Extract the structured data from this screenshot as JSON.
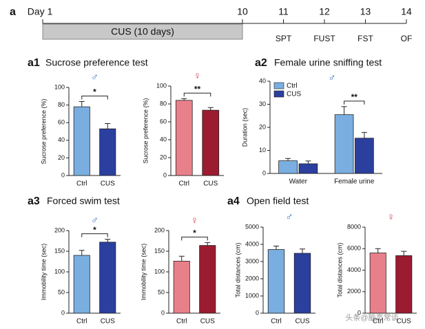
{
  "timeline": {
    "label": "a",
    "start_label": "Day 1",
    "period": "CUS (10 days)",
    "days": [
      10,
      11,
      12,
      13,
      14
    ],
    "tests": [
      "SPT",
      "FUST",
      "FST",
      "OF"
    ]
  },
  "panels": [
    {
      "label": "a1",
      "title": "Sucrose preference test"
    },
    {
      "label": "a2",
      "title": "Female urine sniffing test"
    },
    {
      "label": "a3",
      "title": "Forced swim test"
    },
    {
      "label": "a4",
      "title": "Open field test"
    }
  ],
  "chart_data": [
    {
      "type": "bar",
      "symbol": "♂",
      "symbol_color": "#3b6fc9",
      "ylabel": "Sucrose preference (%)",
      "categories": [
        "Ctrl",
        "CUS"
      ],
      "values": [
        78,
        53
      ],
      "errors": [
        6,
        6
      ],
      "colors": [
        "#7aaee0",
        "#2b3f9e"
      ],
      "ylim": [
        0,
        100
      ],
      "yticks": [
        0,
        20,
        40,
        60,
        80,
        100
      ],
      "annotation": "*"
    },
    {
      "type": "bar",
      "symbol": "♀",
      "symbol_color": "#d23a4a",
      "ylabel": "Sucrose preference (%)",
      "categories": [
        "Ctrl",
        "CUS"
      ],
      "values": [
        84,
        73
      ],
      "errors": [
        2,
        3
      ],
      "colors": [
        "#e8808a",
        "#9b1b30"
      ],
      "ylim": [
        0,
        100
      ],
      "yticks": [
        0,
        20,
        40,
        60,
        80,
        100
      ],
      "annotation": "**"
    },
    {
      "type": "grouped",
      "symbol": "♂",
      "symbol_color": "#3b6fc9",
      "ylabel": "Duration (sec)",
      "categories": [
        "Water",
        "Female urine"
      ],
      "series": [
        {
          "name": "Ctrl",
          "color": "#7aaee0",
          "values": [
            5.5,
            25.5
          ],
          "errors": [
            1,
            3.5
          ]
        },
        {
          "name": "CUS",
          "color": "#2b3f9e",
          "values": [
            4.2,
            15.3
          ],
          "errors": [
            1.2,
            2.5
          ]
        }
      ],
      "legend": "upper left",
      "ylim": [
        0,
        40
      ],
      "yticks": [
        0,
        10,
        20,
        30,
        40
      ],
      "annotation": "**"
    },
    {
      "type": "bar",
      "symbol": "♂",
      "symbol_color": "#3b6fc9",
      "ylabel": "Immobility time (sec)",
      "categories": [
        "Ctrl",
        "CUS"
      ],
      "values": [
        140,
        172
      ],
      "errors": [
        12,
        7
      ],
      "colors": [
        "#7aaee0",
        "#2b3f9e"
      ],
      "ylim": [
        0,
        200
      ],
      "yticks": [
        0,
        50,
        100,
        150,
        200
      ],
      "annotation": "*"
    },
    {
      "type": "bar",
      "symbol": "♀",
      "symbol_color": "#d23a4a",
      "ylabel": "Immobility time (sec)",
      "categories": [
        "Ctrl",
        "CUS"
      ],
      "values": [
        126,
        164
      ],
      "errors": [
        12,
        7
      ],
      "colors": [
        "#e8808a",
        "#9b1b30"
      ],
      "ylim": [
        0,
        200
      ],
      "yticks": [
        0,
        50,
        100,
        150,
        200
      ],
      "annotation": "*"
    },
    {
      "type": "bar",
      "symbol": "♂",
      "symbol_color": "#3b6fc9",
      "ylabel": "Total distances (cm)",
      "categories": [
        "Ctrl",
        "CUS"
      ],
      "values": [
        3700,
        3480
      ],
      "errors": [
        200,
        250
      ],
      "colors": [
        "#7aaee0",
        "#2b3f9e"
      ],
      "ylim": [
        0,
        5000
      ],
      "yticks": [
        0,
        1000,
        2000,
        3000,
        4000,
        5000
      ]
    },
    {
      "type": "bar",
      "symbol": "♀",
      "symbol_color": "#d23a4a",
      "ylabel": "Total distances (cm)",
      "categories": [
        "Ctrl",
        "CUS"
      ],
      "values": [
        5600,
        5350
      ],
      "errors": [
        400,
        400
      ],
      "colors": [
        "#e8808a",
        "#9b1b30"
      ],
      "ylim": [
        0,
        8000
      ],
      "yticks": [
        0,
        2000,
        4000,
        6000,
        8000
      ]
    }
  ],
  "watermark": "头条@脑声常谈"
}
